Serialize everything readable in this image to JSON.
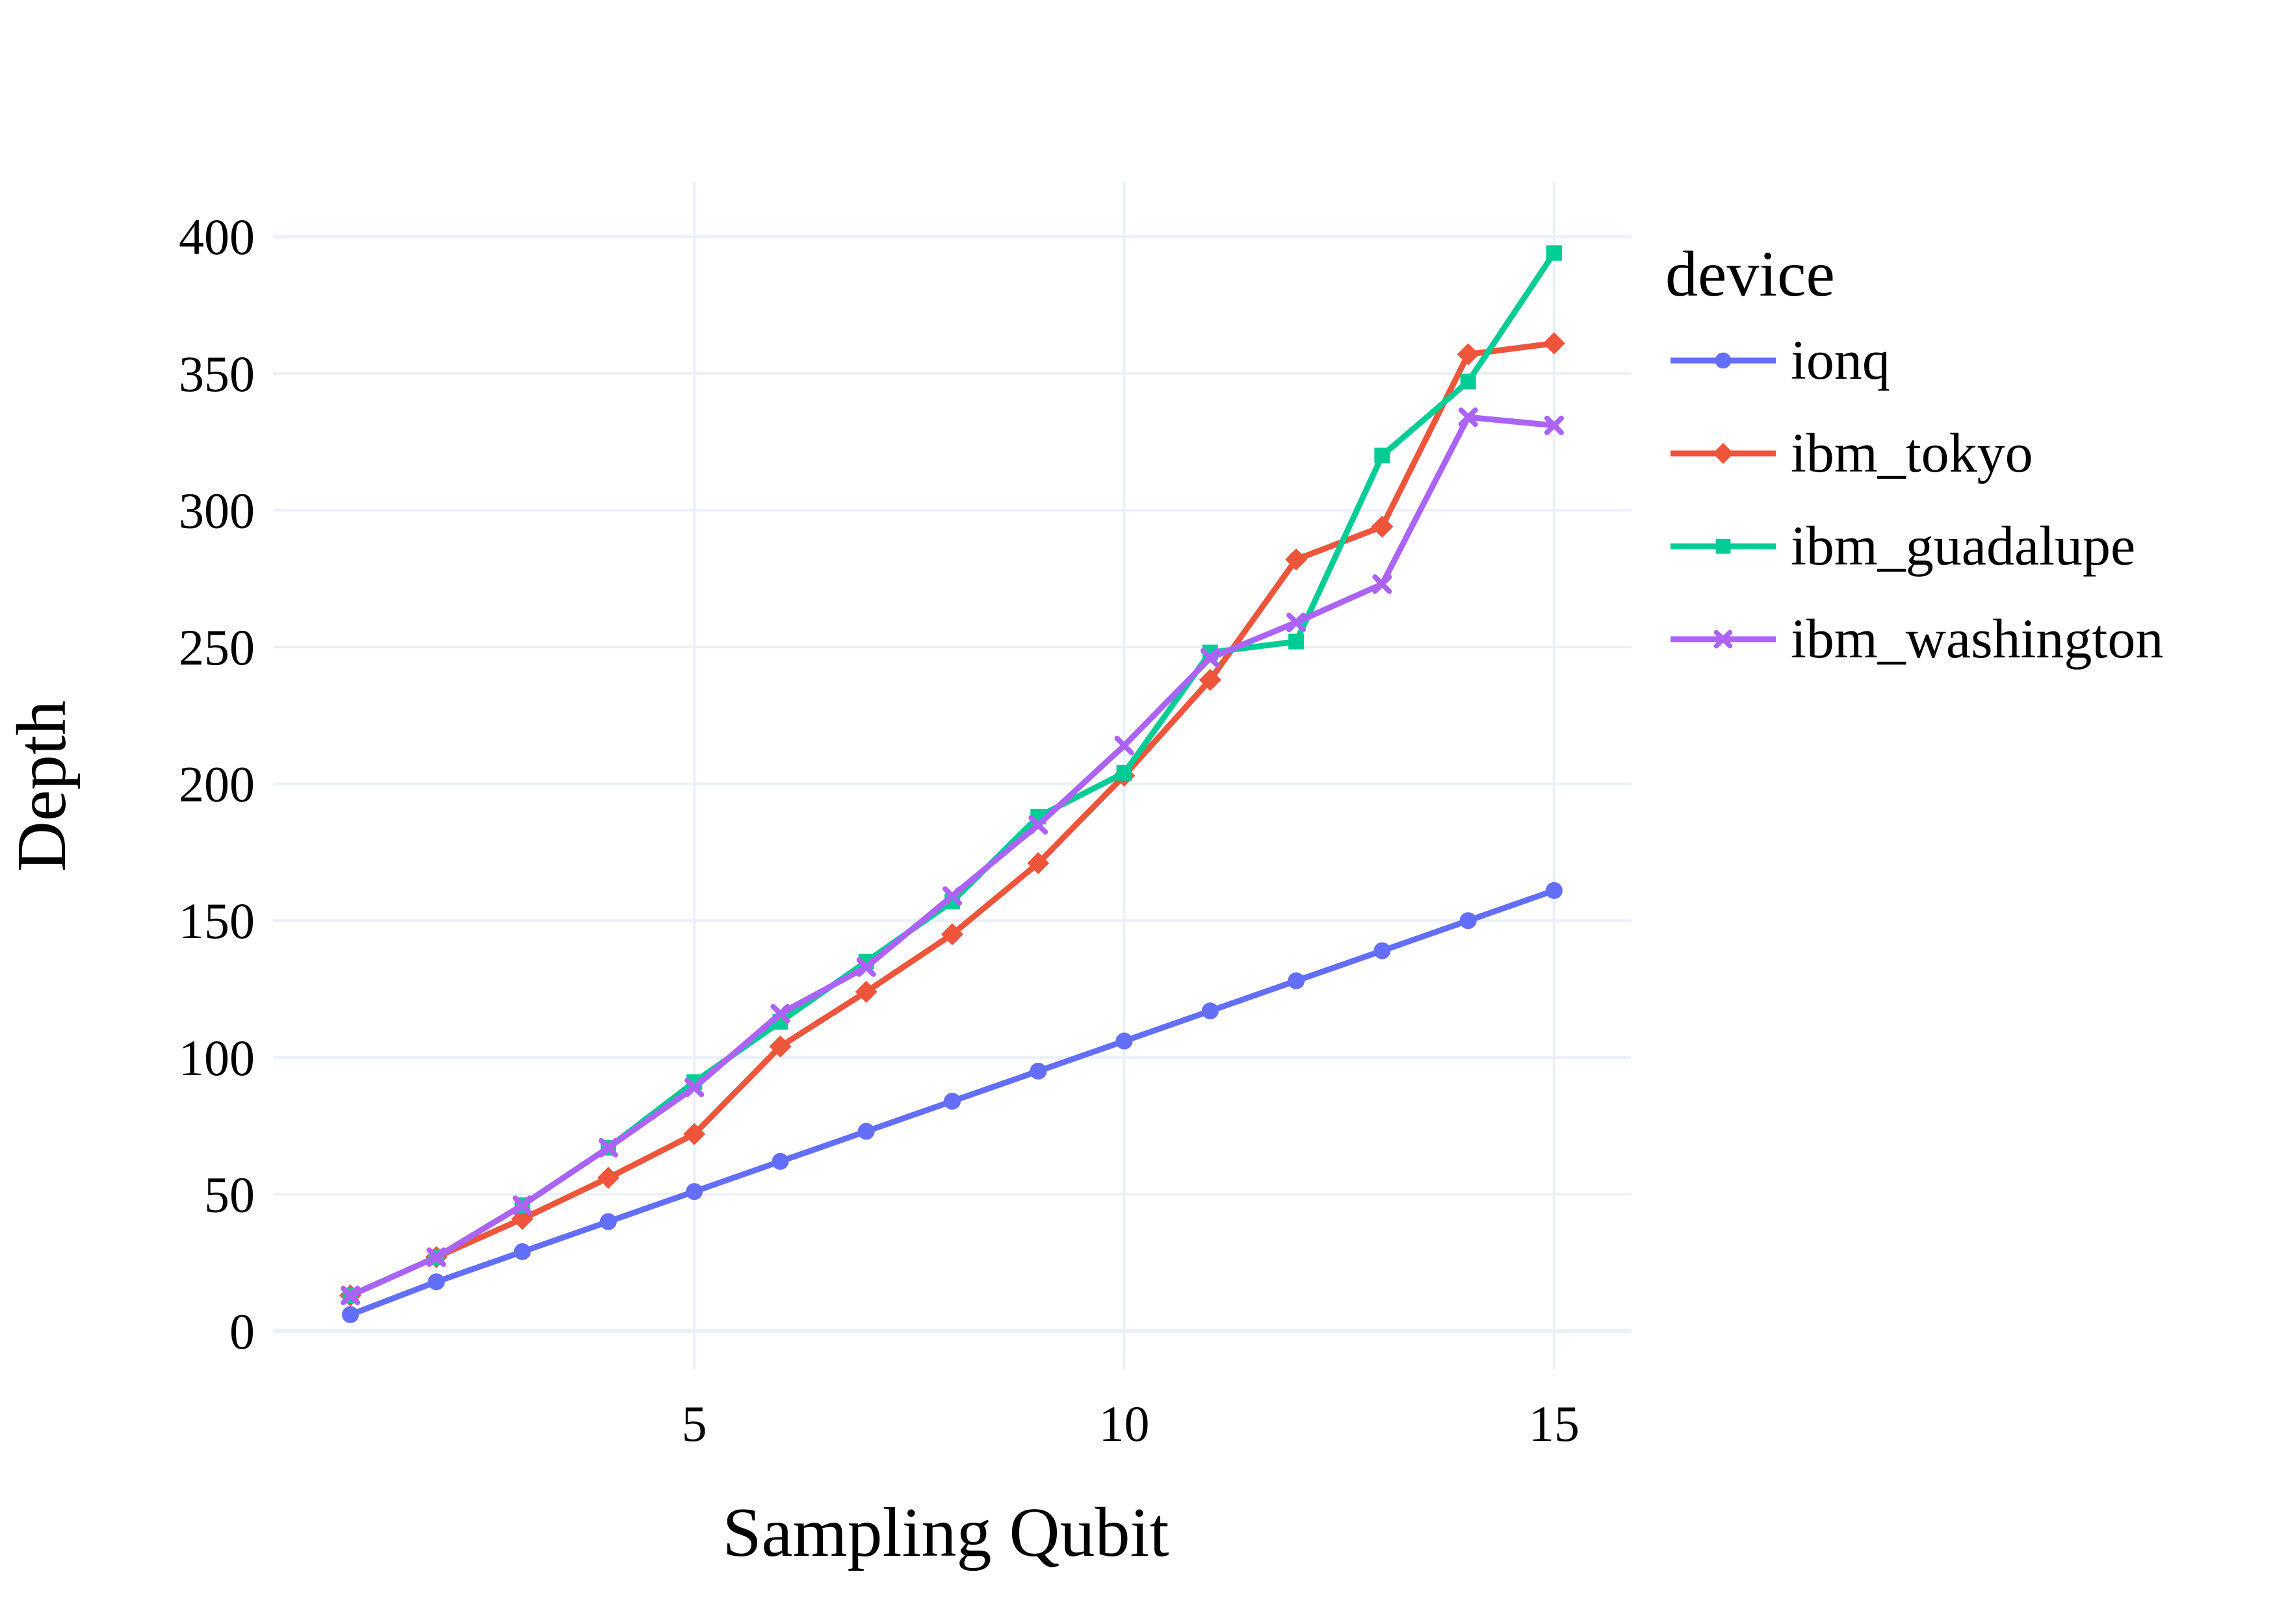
{
  "chart_data": {
    "type": "line",
    "xlabel": "Sampling Qubit",
    "ylabel": "Depth",
    "xlim": [
      0.1,
      15.9
    ],
    "ylim": [
      -14,
      420
    ],
    "x_ticks": [
      5,
      10,
      15
    ],
    "y_ticks": [
      0,
      50,
      100,
      150,
      200,
      250,
      300,
      350,
      400
    ],
    "grid": true,
    "legend_title": "device",
    "legend_position": "right",
    "x": [
      1,
      2,
      3,
      4,
      5,
      6,
      7,
      8,
      9,
      10,
      11,
      12,
      13,
      14,
      15
    ],
    "series": [
      {
        "name": "ionq",
        "color": "#636EFA",
        "marker": "circle",
        "values": [
          6,
          18,
          29,
          40,
          51,
          62,
          73,
          84,
          95,
          106,
          117,
          128,
          139,
          150,
          161
        ]
      },
      {
        "name": "ibm_tokyo",
        "color": "#EF553B",
        "marker": "diamond",
        "values": [
          13,
          27,
          41,
          56,
          72,
          104,
          124,
          145,
          171,
          203,
          238,
          282,
          294,
          357,
          361
        ]
      },
      {
        "name": "ibm_guadalupe",
        "color": "#00CC96",
        "marker": "square",
        "values": [
          13,
          27,
          46,
          67,
          91,
          113,
          135,
          157,
          188,
          204,
          248,
          252,
          320,
          347,
          394
        ]
      },
      {
        "name": "ibm_washington",
        "color": "#AB63FA",
        "marker": "x",
        "values": [
          13,
          27,
          46,
          67,
          89,
          116,
          133,
          159,
          185,
          214,
          246,
          259,
          273,
          334,
          331
        ]
      }
    ]
  }
}
